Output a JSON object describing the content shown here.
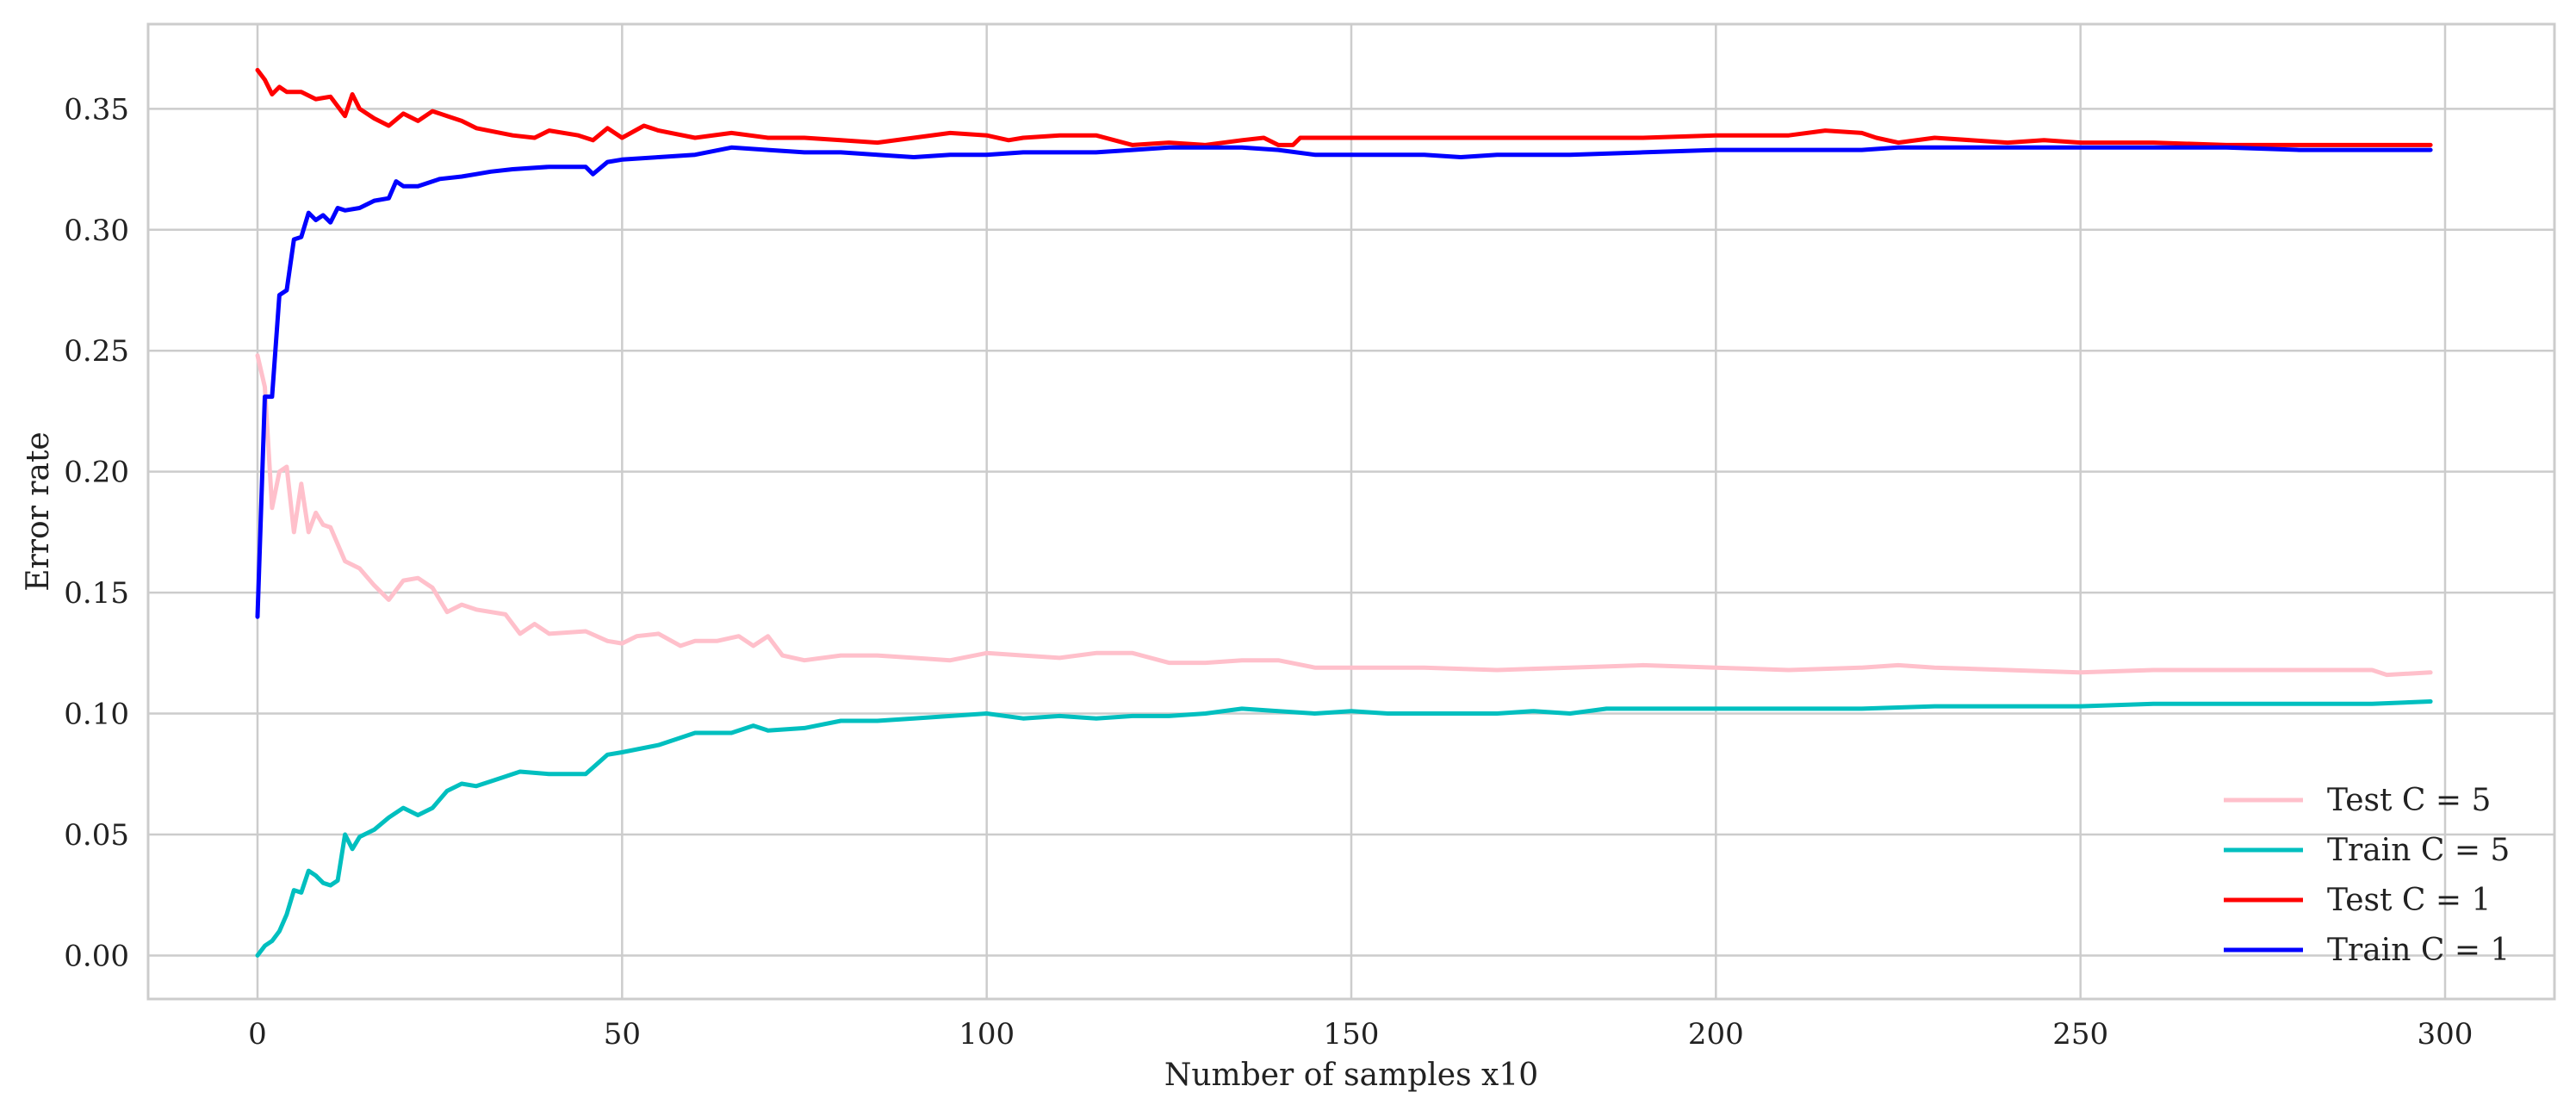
{
  "chart_data": {
    "type": "line",
    "title": "",
    "xlabel": "Number of samples x10",
    "ylabel": "Error rate",
    "xlim": [
      -15,
      315
    ],
    "ylim": [
      -0.018,
      0.385
    ],
    "xticks": [
      0,
      50,
      100,
      150,
      200,
      250,
      300
    ],
    "xtick_labels": [
      "0",
      "50",
      "100",
      "150",
      "200",
      "250",
      "300"
    ],
    "yticks": [
      0.0,
      0.05,
      0.1,
      0.15,
      0.2,
      0.25,
      0.3,
      0.35
    ],
    "ytick_labels": [
      "0.00",
      "0.05",
      "0.10",
      "0.15",
      "0.20",
      "0.25",
      "0.30",
      "0.35"
    ],
    "grid": true,
    "legend_position": "lower-right",
    "series": [
      {
        "name": "Test C = 5",
        "color": "#ffc0cb",
        "points": [
          [
            0,
            0.248
          ],
          [
            1,
            0.235
          ],
          [
            2,
            0.185
          ],
          [
            3,
            0.2
          ],
          [
            4,
            0.202
          ],
          [
            5,
            0.175
          ],
          [
            6,
            0.195
          ],
          [
            7,
            0.175
          ],
          [
            8,
            0.183
          ],
          [
            9,
            0.178
          ],
          [
            10,
            0.177
          ],
          [
            12,
            0.163
          ],
          [
            14,
            0.16
          ],
          [
            16,
            0.153
          ],
          [
            18,
            0.147
          ],
          [
            20,
            0.155
          ],
          [
            22,
            0.156
          ],
          [
            24,
            0.152
          ],
          [
            26,
            0.142
          ],
          [
            28,
            0.145
          ],
          [
            30,
            0.143
          ],
          [
            34,
            0.141
          ],
          [
            36,
            0.133
          ],
          [
            38,
            0.137
          ],
          [
            40,
            0.133
          ],
          [
            45,
            0.134
          ],
          [
            48,
            0.13
          ],
          [
            50,
            0.129
          ],
          [
            52,
            0.132
          ],
          [
            55,
            0.133
          ],
          [
            58,
            0.128
          ],
          [
            60,
            0.13
          ],
          [
            63,
            0.13
          ],
          [
            66,
            0.132
          ],
          [
            68,
            0.128
          ],
          [
            70,
            0.132
          ],
          [
            72,
            0.124
          ],
          [
            75,
            0.122
          ],
          [
            80,
            0.124
          ],
          [
            85,
            0.124
          ],
          [
            90,
            0.123
          ],
          [
            95,
            0.122
          ],
          [
            100,
            0.125
          ],
          [
            105,
            0.124
          ],
          [
            110,
            0.123
          ],
          [
            115,
            0.125
          ],
          [
            120,
            0.125
          ],
          [
            125,
            0.121
          ],
          [
            130,
            0.121
          ],
          [
            135,
            0.122
          ],
          [
            140,
            0.122
          ],
          [
            145,
            0.119
          ],
          [
            150,
            0.119
          ],
          [
            160,
            0.119
          ],
          [
            170,
            0.118
          ],
          [
            180,
            0.119
          ],
          [
            190,
            0.12
          ],
          [
            200,
            0.119
          ],
          [
            210,
            0.118
          ],
          [
            220,
            0.119
          ],
          [
            225,
            0.12
          ],
          [
            230,
            0.119
          ],
          [
            240,
            0.118
          ],
          [
            250,
            0.117
          ],
          [
            260,
            0.118
          ],
          [
            270,
            0.118
          ],
          [
            280,
            0.118
          ],
          [
            290,
            0.118
          ],
          [
            292,
            0.116
          ],
          [
            298,
            0.117
          ]
        ]
      },
      {
        "name": "Train C = 5",
        "color": "#00bfbf",
        "points": [
          [
            0,
            0.0
          ],
          [
            1,
            0.004
          ],
          [
            2,
            0.006
          ],
          [
            3,
            0.01
          ],
          [
            4,
            0.017
          ],
          [
            5,
            0.027
          ],
          [
            6,
            0.026
          ],
          [
            7,
            0.035
          ],
          [
            8,
            0.033
          ],
          [
            9,
            0.03
          ],
          [
            10,
            0.029
          ],
          [
            11,
            0.031
          ],
          [
            12,
            0.05
          ],
          [
            13,
            0.044
          ],
          [
            14,
            0.049
          ],
          [
            16,
            0.052
          ],
          [
            18,
            0.057
          ],
          [
            20,
            0.061
          ],
          [
            22,
            0.058
          ],
          [
            24,
            0.061
          ],
          [
            26,
            0.068
          ],
          [
            28,
            0.071
          ],
          [
            30,
            0.07
          ],
          [
            32,
            0.072
          ],
          [
            34,
            0.074
          ],
          [
            36,
            0.076
          ],
          [
            40,
            0.075
          ],
          [
            45,
            0.075
          ],
          [
            48,
            0.083
          ],
          [
            50,
            0.084
          ],
          [
            55,
            0.087
          ],
          [
            60,
            0.092
          ],
          [
            65,
            0.092
          ],
          [
            68,
            0.095
          ],
          [
            70,
            0.093
          ],
          [
            75,
            0.094
          ],
          [
            80,
            0.097
          ],
          [
            85,
            0.097
          ],
          [
            90,
            0.098
          ],
          [
            95,
            0.099
          ],
          [
            100,
            0.1
          ],
          [
            105,
            0.098
          ],
          [
            110,
            0.099
          ],
          [
            115,
            0.098
          ],
          [
            120,
            0.099
          ],
          [
            125,
            0.099
          ],
          [
            130,
            0.1
          ],
          [
            135,
            0.102
          ],
          [
            140,
            0.101
          ],
          [
            145,
            0.1
          ],
          [
            150,
            0.101
          ],
          [
            155,
            0.1
          ],
          [
            160,
            0.1
          ],
          [
            165,
            0.1
          ],
          [
            170,
            0.1
          ],
          [
            175,
            0.101
          ],
          [
            180,
            0.1
          ],
          [
            185,
            0.102
          ],
          [
            190,
            0.102
          ],
          [
            195,
            0.102
          ],
          [
            200,
            0.102
          ],
          [
            210,
            0.102
          ],
          [
            220,
            0.102
          ],
          [
            230,
            0.103
          ],
          [
            240,
            0.103
          ],
          [
            250,
            0.103
          ],
          [
            260,
            0.104
          ],
          [
            270,
            0.104
          ],
          [
            280,
            0.104
          ],
          [
            290,
            0.104
          ],
          [
            298,
            0.105
          ]
        ]
      },
      {
        "name": "Test C = 1",
        "color": "#ff0000",
        "points": [
          [
            0,
            0.366
          ],
          [
            1,
            0.362
          ],
          [
            2,
            0.356
          ],
          [
            3,
            0.359
          ],
          [
            4,
            0.357
          ],
          [
            6,
            0.357
          ],
          [
            8,
            0.354
          ],
          [
            10,
            0.355
          ],
          [
            12,
            0.347
          ],
          [
            13,
            0.356
          ],
          [
            14,
            0.35
          ],
          [
            16,
            0.346
          ],
          [
            18,
            0.343
          ],
          [
            20,
            0.348
          ],
          [
            22,
            0.345
          ],
          [
            24,
            0.349
          ],
          [
            26,
            0.347
          ],
          [
            28,
            0.345
          ],
          [
            30,
            0.342
          ],
          [
            35,
            0.339
          ],
          [
            38,
            0.338
          ],
          [
            40,
            0.341
          ],
          [
            44,
            0.339
          ],
          [
            46,
            0.337
          ],
          [
            48,
            0.342
          ],
          [
            50,
            0.338
          ],
          [
            53,
            0.343
          ],
          [
            55,
            0.341
          ],
          [
            60,
            0.338
          ],
          [
            65,
            0.34
          ],
          [
            70,
            0.338
          ],
          [
            75,
            0.338
          ],
          [
            80,
            0.337
          ],
          [
            85,
            0.336
          ],
          [
            90,
            0.338
          ],
          [
            95,
            0.34
          ],
          [
            100,
            0.339
          ],
          [
            103,
            0.337
          ],
          [
            105,
            0.338
          ],
          [
            110,
            0.339
          ],
          [
            115,
            0.339
          ],
          [
            120,
            0.335
          ],
          [
            125,
            0.336
          ],
          [
            130,
            0.335
          ],
          [
            135,
            0.337
          ],
          [
            138,
            0.338
          ],
          [
            140,
            0.335
          ],
          [
            142,
            0.335
          ],
          [
            143,
            0.338
          ],
          [
            150,
            0.338
          ],
          [
            160,
            0.338
          ],
          [
            170,
            0.338
          ],
          [
            180,
            0.338
          ],
          [
            190,
            0.338
          ],
          [
            200,
            0.339
          ],
          [
            210,
            0.339
          ],
          [
            215,
            0.341
          ],
          [
            220,
            0.34
          ],
          [
            222,
            0.338
          ],
          [
            225,
            0.336
          ],
          [
            230,
            0.338
          ],
          [
            240,
            0.336
          ],
          [
            245,
            0.337
          ],
          [
            250,
            0.336
          ],
          [
            255,
            0.336
          ],
          [
            260,
            0.336
          ],
          [
            270,
            0.335
          ],
          [
            280,
            0.335
          ],
          [
            298,
            0.335
          ]
        ]
      },
      {
        "name": "Train C = 1",
        "color": "#0000ff",
        "points": [
          [
            0,
            0.14
          ],
          [
            1,
            0.231
          ],
          [
            2,
            0.231
          ],
          [
            3,
            0.273
          ],
          [
            4,
            0.275
          ],
          [
            5,
            0.296
          ],
          [
            6,
            0.297
          ],
          [
            7,
            0.307
          ],
          [
            8,
            0.304
          ],
          [
            9,
            0.306
          ],
          [
            10,
            0.303
          ],
          [
            11,
            0.309
          ],
          [
            12,
            0.308
          ],
          [
            14,
            0.309
          ],
          [
            16,
            0.312
          ],
          [
            18,
            0.313
          ],
          [
            19,
            0.32
          ],
          [
            20,
            0.318
          ],
          [
            22,
            0.318
          ],
          [
            25,
            0.321
          ],
          [
            28,
            0.322
          ],
          [
            30,
            0.323
          ],
          [
            32,
            0.324
          ],
          [
            35,
            0.325
          ],
          [
            40,
            0.326
          ],
          [
            45,
            0.326
          ],
          [
            46,
            0.323
          ],
          [
            48,
            0.328
          ],
          [
            50,
            0.329
          ],
          [
            55,
            0.33
          ],
          [
            60,
            0.331
          ],
          [
            65,
            0.334
          ],
          [
            70,
            0.333
          ],
          [
            75,
            0.332
          ],
          [
            80,
            0.332
          ],
          [
            85,
            0.331
          ],
          [
            90,
            0.33
          ],
          [
            95,
            0.331
          ],
          [
            100,
            0.331
          ],
          [
            105,
            0.332
          ],
          [
            110,
            0.332
          ],
          [
            115,
            0.332
          ],
          [
            120,
            0.333
          ],
          [
            125,
            0.334
          ],
          [
            130,
            0.334
          ],
          [
            135,
            0.334
          ],
          [
            140,
            0.333
          ],
          [
            145,
            0.331
          ],
          [
            150,
            0.331
          ],
          [
            160,
            0.331
          ],
          [
            165,
            0.33
          ],
          [
            170,
            0.331
          ],
          [
            180,
            0.331
          ],
          [
            190,
            0.332
          ],
          [
            200,
            0.333
          ],
          [
            210,
            0.333
          ],
          [
            220,
            0.333
          ],
          [
            225,
            0.334
          ],
          [
            230,
            0.334
          ],
          [
            240,
            0.334
          ],
          [
            250,
            0.334
          ],
          [
            260,
            0.334
          ],
          [
            270,
            0.334
          ],
          [
            280,
            0.333
          ],
          [
            290,
            0.333
          ],
          [
            298,
            0.333
          ]
        ]
      }
    ]
  }
}
